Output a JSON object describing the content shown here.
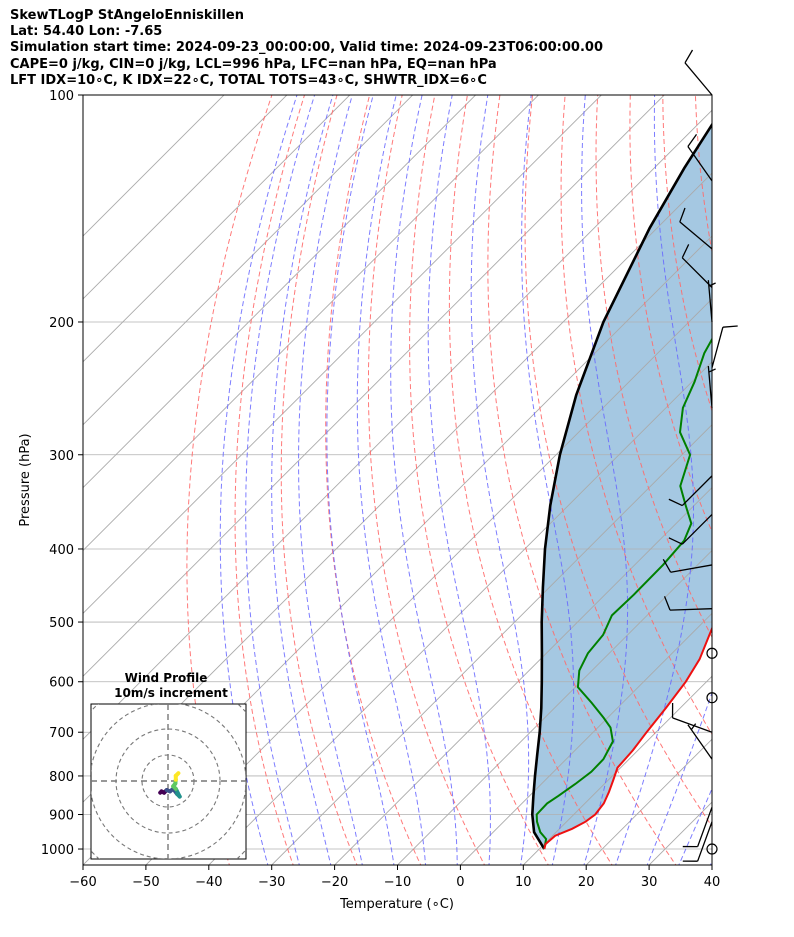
{
  "header": {
    "line1": "SkewTLogP StAngeloEnniskillen",
    "line2": "Lat: 54.40   Lon: -7.65",
    "line3": "Simulation start time: 2024-09-23_00:00:00, Valid time: 2024-09-23T06:00:00.00",
    "line4": "CAPE=0 j/kg, CIN=0 j/kg, LCL=996 hPa, LFC=nan hPa, EQ=nan hPa",
    "line5": "LFT IDX=10∘C, K IDX=22∘C, TOTAL TOTS=43∘C, SHWTR_IDX=6∘C"
  },
  "chart_data": {
    "type": "skewt-logp",
    "xlabel": "Temperature (∘C)",
    "ylabel": "Pressure (hPa)",
    "xlim": [
      -60,
      40
    ],
    "ylim": [
      1050,
      100
    ],
    "x_ticks": [
      -60,
      -50,
      -40,
      -30,
      -20,
      -10,
      0,
      10,
      20,
      30,
      40
    ],
    "y_ticks": [
      100,
      200,
      300,
      400,
      500,
      600,
      700,
      800,
      900,
      1000
    ],
    "grid": true,
    "series": [
      {
        "color": "#ee1111",
        "points": [
          [
            1000,
            10.8
          ],
          [
            985,
            10.2
          ],
          [
            960,
            10.4
          ],
          [
            940,
            12.0
          ],
          [
            920,
            13.0
          ],
          [
            900,
            13.4
          ],
          [
            870,
            13.0
          ],
          [
            840,
            12.0
          ],
          [
            810,
            10.8
          ],
          [
            780,
            9.5
          ],
          [
            740,
            9.2
          ],
          [
            700,
            8.5
          ],
          [
            650,
            7.7
          ],
          [
            600,
            6.7
          ],
          [
            560,
            5.3
          ],
          [
            520,
            3.0
          ],
          [
            500,
            1.8
          ],
          [
            470,
            0.2
          ],
          [
            430,
            -3.0
          ],
          [
            400,
            -5.8
          ],
          [
            370,
            -9.0
          ],
          [
            340,
            -12.4
          ],
          [
            310,
            -16.6
          ],
          [
            290,
            -19.9
          ],
          [
            260,
            -22.7
          ],
          [
            230,
            -26.4
          ],
          [
            210,
            -30.4
          ],
          [
            200,
            -31.4
          ],
          [
            180,
            -31.8
          ],
          [
            160,
            -31.9
          ],
          [
            145,
            -33.0
          ],
          [
            135,
            -34.6
          ],
          [
            125,
            -37.8
          ],
          [
            115,
            -42.7
          ],
          [
            105,
            -47.4
          ],
          [
            100,
            -51.0
          ]
        ]
      },
      {
        "color": "#008000",
        "points": [
          [
            1000,
            10.8
          ],
          [
            970,
            9.5
          ],
          [
            950,
            7.5
          ],
          [
            920,
            5.3
          ],
          [
            900,
            4.1
          ],
          [
            870,
            4.0
          ],
          [
            850,
            4.6
          ],
          [
            820,
            5.4
          ],
          [
            790,
            6.0
          ],
          [
            760,
            5.9
          ],
          [
            720,
            4.6
          ],
          [
            690,
            2.0
          ],
          [
            670,
            -0.6
          ],
          [
            640,
            -4.9
          ],
          [
            610,
            -9.6
          ],
          [
            580,
            -12.0
          ],
          [
            550,
            -13.4
          ],
          [
            520,
            -13.9
          ],
          [
            490,
            -15.6
          ],
          [
            460,
            -15.4
          ],
          [
            420,
            -15.5
          ],
          [
            390,
            -16.0
          ],
          [
            370,
            -17.6
          ],
          [
            350,
            -21.4
          ],
          [
            330,
            -25.3
          ],
          [
            300,
            -28.7
          ],
          [
            280,
            -33.9
          ],
          [
            260,
            -37.3
          ],
          [
            240,
            -39.6
          ],
          [
            220,
            -42.6
          ],
          [
            200,
            -44.8
          ],
          [
            185,
            -47.1
          ],
          [
            170,
            -51.2
          ],
          [
            160,
            -55.0
          ],
          [
            150,
            -58.0
          ],
          [
            140,
            -57.9
          ],
          [
            130,
            -58.5
          ],
          [
            120,
            -60.8
          ],
          [
            110,
            -63.1
          ],
          [
            100,
            -65.8
          ]
        ]
      }
    ],
    "parcel_profile": {
      "color": "#000000",
      "points": [
        [
          1000,
          10.8
        ],
        [
          950,
          6.5
        ],
        [
          900,
          3.4
        ],
        [
          850,
          0.6
        ],
        [
          800,
          -2.3
        ],
        [
          750,
          -5.3
        ],
        [
          700,
          -8.5
        ],
        [
          650,
          -12.1
        ],
        [
          600,
          -16.2
        ],
        [
          550,
          -20.7
        ],
        [
          500,
          -25.7
        ],
        [
          450,
          -31.0
        ],
        [
          400,
          -36.8
        ],
        [
          350,
          -42.9
        ],
        [
          300,
          -49.4
        ],
        [
          250,
          -56.3
        ],
        [
          200,
          -63.6
        ],
        [
          150,
          -71.2
        ],
        [
          125,
          -75.2
        ],
        [
          100,
          -79.4
        ]
      ]
    },
    "cin_fill_color": "#a0c5e0",
    "dry_adiabat_color": "#ff6a6a",
    "moist_adiabat_color": "#6666ff",
    "mixing_ratio_color": "#7777ff",
    "isotherm_color": "#aaaaaa",
    "wind_barbs": [
      {
        "pressure": 100,
        "speed_kt": 10,
        "direction_deg": 320
      },
      {
        "pressure": 130,
        "speed_kt": 10,
        "direction_deg": 325
      },
      {
        "pressure": 160,
        "speed_kt": 10,
        "direction_deg": 310
      },
      {
        "pressure": 180,
        "speed_kt": 10,
        "direction_deg": 315
      },
      {
        "pressure": 200,
        "speed_kt": 5,
        "direction_deg": 355
      },
      {
        "pressure": 230,
        "speed_kt": 10,
        "direction_deg": 15
      },
      {
        "pressure": 260,
        "speed_kt": 5,
        "direction_deg": 355
      },
      {
        "pressure": 320,
        "speed_kt": 10,
        "direction_deg": 225
      },
      {
        "pressure": 360,
        "speed_kt": 10,
        "direction_deg": 225
      },
      {
        "pressure": 420,
        "speed_kt": 10,
        "direction_deg": 260
      },
      {
        "pressure": 480,
        "speed_kt": 10,
        "direction_deg": 268
      },
      {
        "pressure": 550,
        "speed_kt": 0,
        "direction_deg": 0
      },
      {
        "pressure": 630,
        "speed_kt": 0,
        "direction_deg": 0
      },
      {
        "pressure": 700,
        "speed_kt": 10,
        "direction_deg": 290
      },
      {
        "pressure": 760,
        "speed_kt": 5,
        "direction_deg": 325
      },
      {
        "pressure": 880,
        "speed_kt": 10,
        "direction_deg": 200
      },
      {
        "pressure": 920,
        "speed_kt": 10,
        "direction_deg": 200
      },
      {
        "pressure": 1000,
        "speed_kt": 0,
        "direction_deg": 0
      }
    ],
    "hodograph": {
      "title_line1": "Wind Profile",
      "title_line2": "10m/s increment",
      "ring_step_ms": 10,
      "points_ms": [
        [
          -3.0,
          -4.5
        ],
        [
          -2.5,
          -4.0
        ],
        [
          -1.5,
          -4.5
        ],
        [
          -0.5,
          -3.5
        ],
        [
          0.8,
          -4.0
        ],
        [
          2.0,
          -3.0
        ],
        [
          3.5,
          -5.0
        ],
        [
          4.5,
          -6.0
        ],
        [
          3.0,
          -3.0
        ],
        [
          2.0,
          -2.0
        ],
        [
          2.8,
          -1.0
        ],
        [
          3.0,
          0.5
        ],
        [
          3.0,
          2.0
        ],
        [
          4.0,
          3.0
        ]
      ],
      "cmap": [
        "#440154",
        "#3b528b",
        "#21918c",
        "#5ec962",
        "#fde725"
      ]
    }
  }
}
